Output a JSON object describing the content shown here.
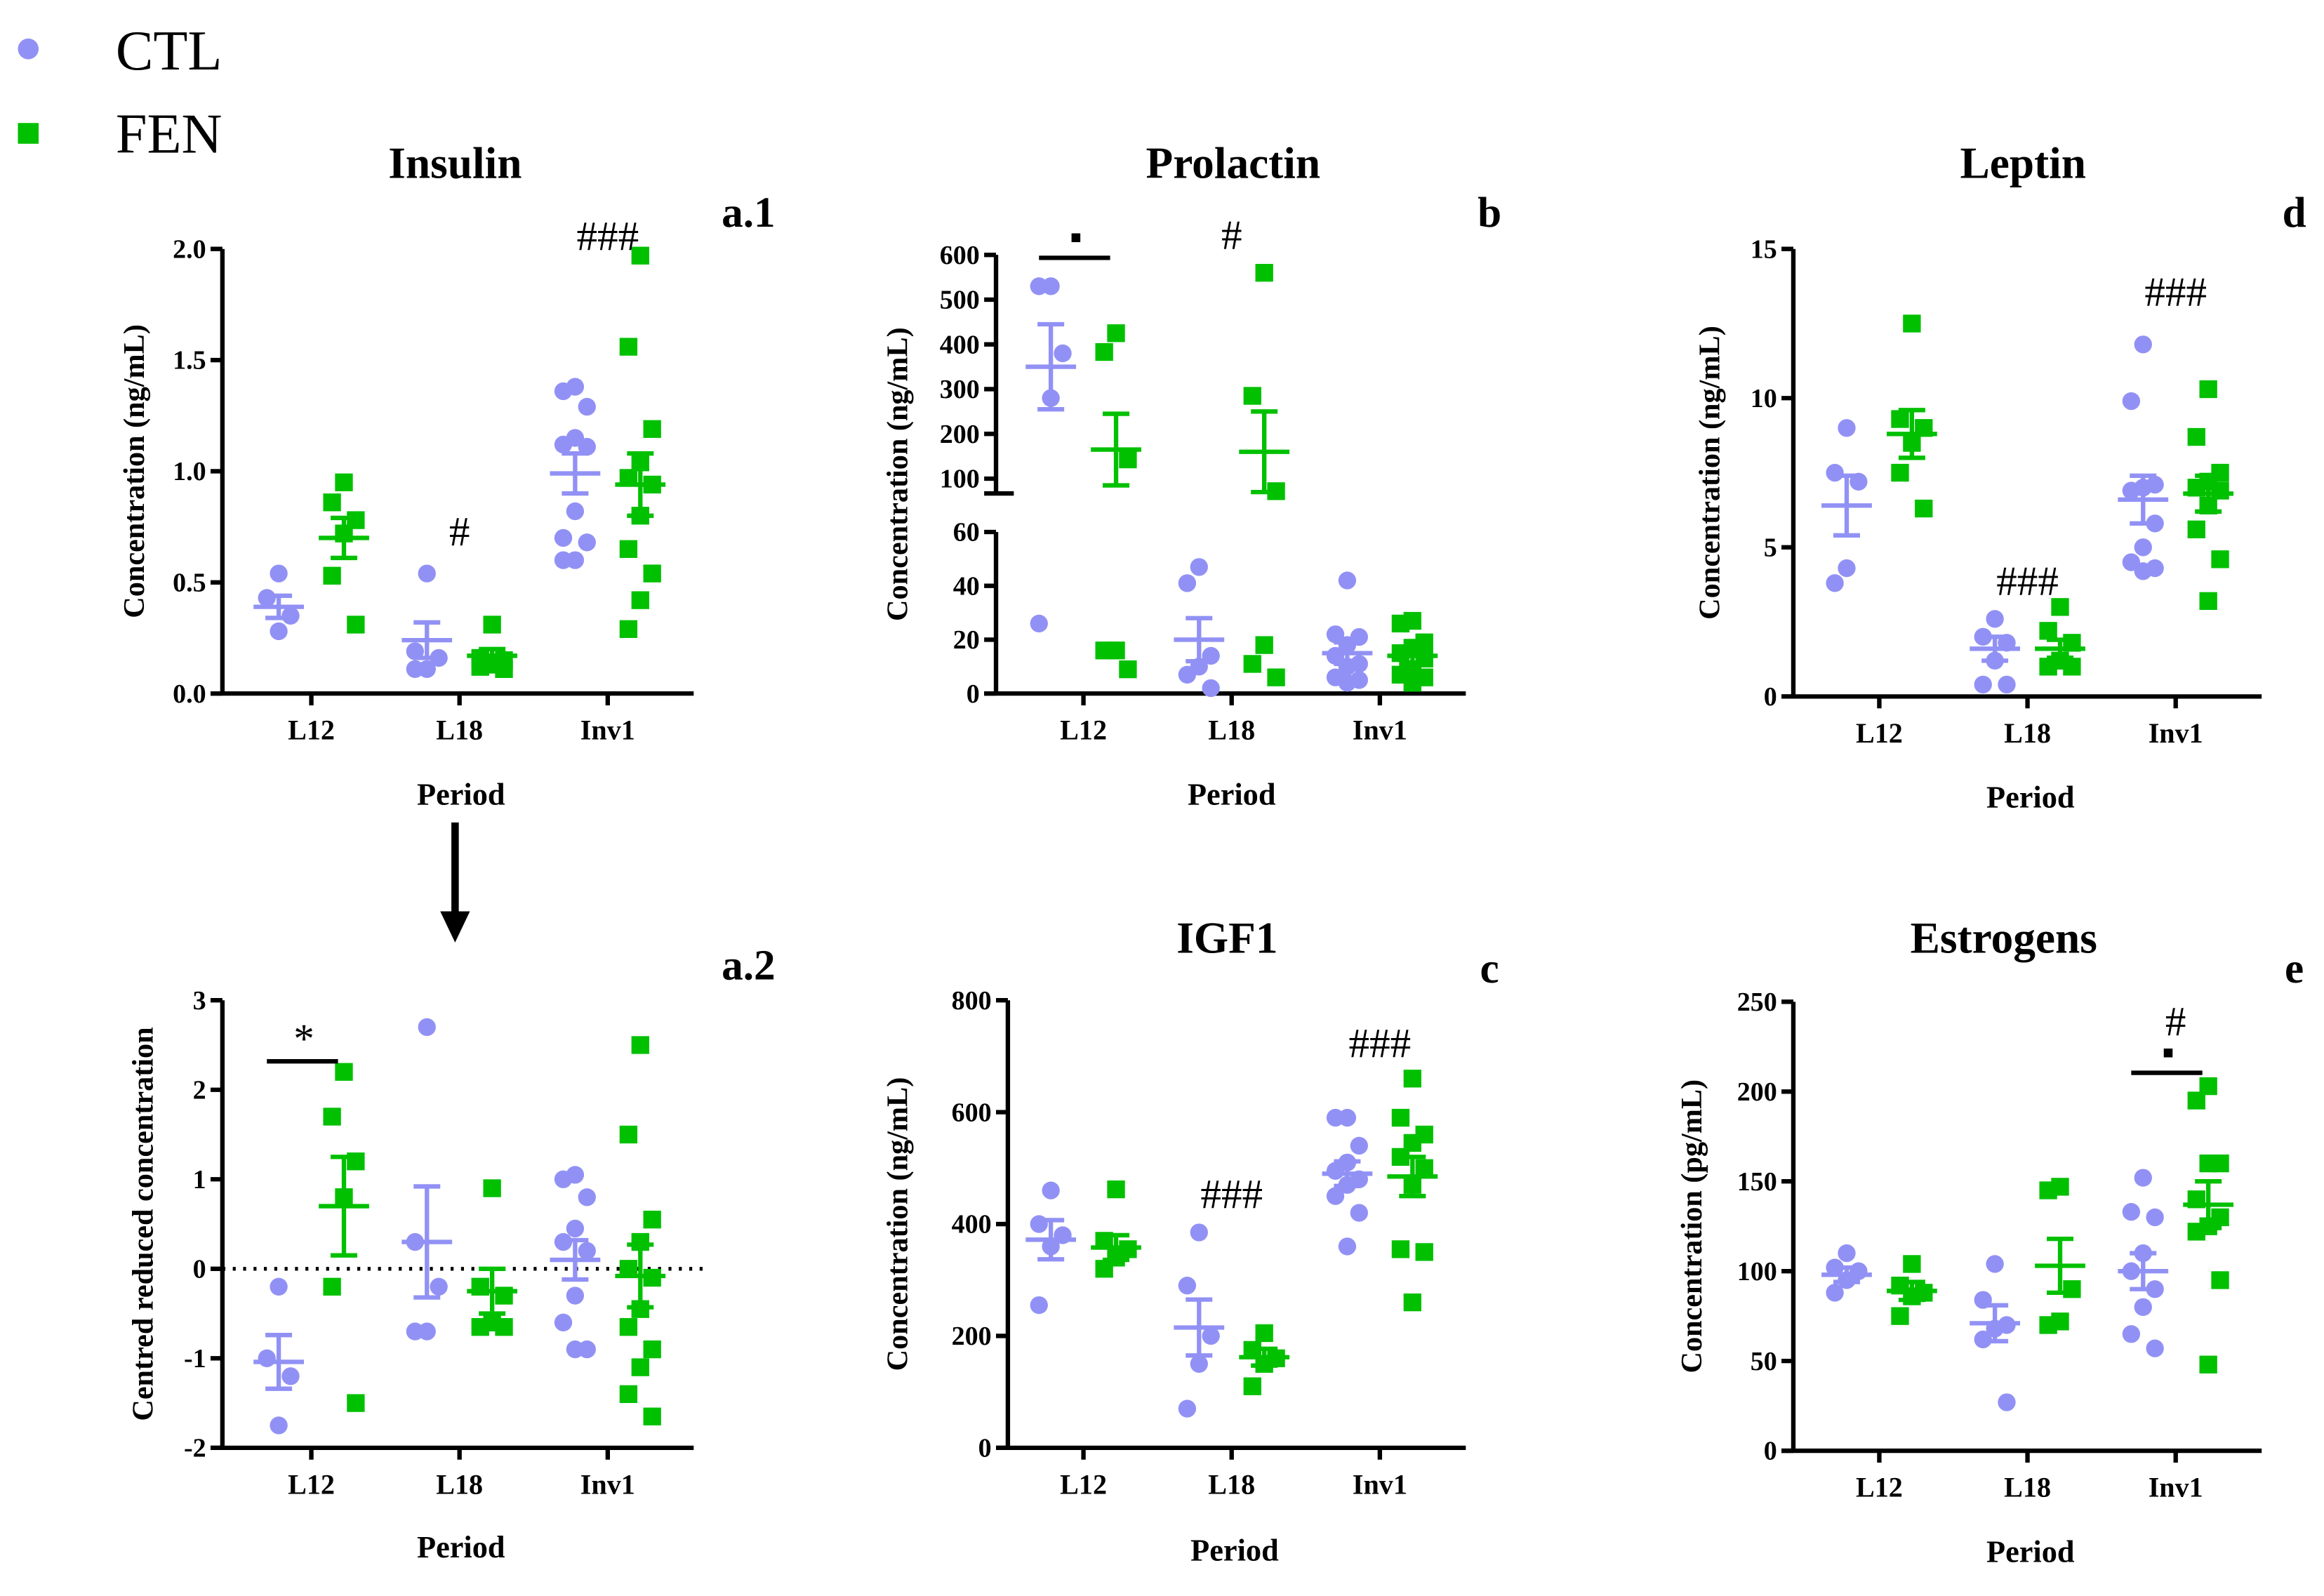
{
  "legend": [
    {
      "label": "CTL",
      "color": "#9191f5",
      "marker": "circle"
    },
    {
      "label": "FEN",
      "color": "#00c000",
      "marker": "square"
    }
  ],
  "arrow_icon": "arrow-down-icon",
  "chart_data": [
    {
      "id": "a1",
      "type": "scatter",
      "title": "Insulin",
      "panel_label": "a.1",
      "xlabel": "Period",
      "ylabel": "Concentration (ng/mL)",
      "categories": [
        "L12",
        "L18",
        "Inv1"
      ],
      "ylim": [
        0,
        2.0
      ],
      "yticks": [
        0,
        0.5,
        1.0,
        1.5,
        2.0
      ],
      "ytick_labels": [
        "0.0",
        "0.5",
        "1.0",
        "1.5",
        "2.0"
      ],
      "series": [
        {
          "name": "CTL",
          "points": [
            [
              0.54,
              0.43,
              0.35,
              0.28
            ],
            [
              0.54,
              0.19,
              0.16,
              0.11,
              0.11
            ],
            [
              1.38,
              1.36,
              1.29,
              1.15,
              1.12,
              1.11,
              0.82,
              0.7,
              0.68,
              0.6,
              0.6
            ]
          ],
          "mean": [
            0.39,
            0.24,
            0.99
          ],
          "sem": [
            0.05,
            0.08,
            0.09
          ]
        },
        {
          "name": "FEN",
          "points": [
            [
              0.95,
              0.86,
              0.78,
              0.72,
              0.53,
              0.31
            ],
            [
              0.31,
              0.16,
              0.15,
              0.13,
              0.12,
              0.11
            ],
            [
              1.97,
              1.56,
              1.19,
              1.04,
              0.97,
              0.94,
              0.8,
              0.65,
              0.54,
              0.42,
              0.29
            ]
          ],
          "mean": [
            0.7,
            0.17,
            0.94
          ],
          "sem": [
            0.09,
            0.03,
            0.14
          ]
        }
      ],
      "annotations": [
        {
          "category": 1,
          "text": "#",
          "y": 0.72
        },
        {
          "category": 2,
          "text": "###",
          "y": 2.05
        }
      ]
    },
    {
      "id": "a2",
      "type": "scatter",
      "title": "",
      "panel_label": "a.2",
      "xlabel": "Period",
      "ylabel": "Centred reduced concentration",
      "categories": [
        "L12",
        "L18",
        "Inv1"
      ],
      "ylim": [
        -2,
        3
      ],
      "yticks": [
        -2,
        -1,
        0,
        1,
        2,
        3
      ],
      "ytick_labels": [
        "-2",
        "-1",
        "0",
        "1",
        "2",
        "3"
      ],
      "reference_line": 0,
      "series": [
        {
          "name": "CTL",
          "points": [
            [
              -0.2,
              -1.0,
              -1.2,
              -1.75
            ],
            [
              2.7,
              0.3,
              -0.2,
              -0.7,
              -0.7
            ],
            [
              1.05,
              1.0,
              0.8,
              0.45,
              0.3,
              0.2,
              -0.3,
              -0.6,
              -0.9,
              -0.9
            ]
          ],
          "mean": [
            -1.04,
            0.3,
            0.1
          ],
          "sem": [
            0.3,
            0.62,
            0.22
          ]
        },
        {
          "name": "FEN",
          "points": [
            [
              2.2,
              1.7,
              1.2,
              0.8,
              -0.2,
              -1.5
            ],
            [
              0.9,
              -0.2,
              -0.3,
              -0.6,
              -0.65,
              -0.65
            ],
            [
              2.5,
              1.5,
              0.55,
              0.3,
              0.0,
              -0.1,
              -0.45,
              -0.65,
              -0.9,
              -1.1,
              -1.4,
              -1.65
            ]
          ],
          "mean": [
            0.7,
            -0.25,
            -0.08
          ],
          "sem": [
            0.55,
            0.25,
            0.35
          ]
        }
      ],
      "annotations": [
        {
          "category": 0,
          "text": "*",
          "y": 2.55,
          "bar": true
        }
      ]
    },
    {
      "id": "b",
      "type": "scatter",
      "title": "Prolactin",
      "panel_label": "b",
      "xlabel": "Period",
      "ylabel": "Concentration (ng/mL)",
      "categories": [
        "L12",
        "L18",
        "Inv1"
      ],
      "ylim": [
        0,
        600
      ],
      "axis_break": [
        60,
        70
      ],
      "yticks": [
        0,
        20,
        40,
        60,
        100,
        200,
        300,
        400,
        500,
        600
      ],
      "ytick_labels": [
        "0",
        "20",
        "40",
        "60",
        "100",
        "200",
        "300",
        "400",
        "500",
        "600"
      ],
      "series": [
        {
          "name": "CTL",
          "points": [
            [
              530,
              530,
              380,
              280,
              26
            ],
            [
              47,
              41,
              14,
              10,
              7,
              2
            ],
            [
              42,
              22,
              21,
              18,
              14,
              11,
              10,
              6,
              5,
              4
            ]
          ],
          "mean": [
            350,
            20,
            15
          ],
          "sem": [
            95,
            8,
            4
          ]
        },
        {
          "name": "FEN",
          "points": [
            [
              425,
              383,
              143,
              16,
              16,
              9
            ],
            [
              560,
              285,
              72,
              18,
              11,
              6
            ],
            [
              27,
              26,
              19,
              17,
              15,
              13,
              9,
              7,
              6,
              4
            ]
          ],
          "mean": [
            165,
            160,
            14
          ],
          "sem": [
            80,
            90,
            3
          ]
        }
      ],
      "annotations": [
        {
          "category": 0,
          "text": "▪",
          "y": 620,
          "bar": true
        },
        {
          "category": 1,
          "text": "#",
          "y": 620
        }
      ]
    },
    {
      "id": "c",
      "type": "scatter",
      "title": "IGF1",
      "panel_label": "c",
      "xlabel": "Period",
      "ylabel": "Concentration (ng/mL)",
      "categories": [
        "L12",
        "L18",
        "Inv1"
      ],
      "ylim": [
        0,
        800
      ],
      "yticks": [
        0,
        200,
        400,
        600,
        800
      ],
      "ytick_labels": [
        "0",
        "200",
        "400",
        "600",
        "800"
      ],
      "series": [
        {
          "name": "CTL",
          "points": [
            [
              460,
              400,
              380,
              360,
              255
            ],
            [
              385,
              290,
              200,
              150,
              70
            ],
            [
              590,
              590,
              540,
              510,
              495,
              480,
              470,
              450,
              420,
              360
            ]
          ],
          "mean": [
            372,
            215,
            490
          ],
          "sem": [
            35,
            50,
            22
          ]
        },
        {
          "name": "FEN",
          "points": [
            [
              462,
              370,
              355,
              340,
              320
            ],
            [
              205,
              175,
              160,
              150,
              110
            ],
            [
              660,
              590,
              560,
              545,
              520,
              500,
              470,
              355,
              350,
              260
            ]
          ],
          "mean": [
            358,
            162,
            485
          ],
          "sem": [
            22,
            15,
            35
          ]
        }
      ],
      "annotations": [
        {
          "category": 1,
          "text": "###",
          "y": 450
        },
        {
          "category": 2,
          "text": "###",
          "y": 720
        }
      ]
    },
    {
      "id": "d",
      "type": "scatter",
      "title": "Leptin",
      "panel_label": "d",
      "xlabel": "Period",
      "ylabel": "Concentration (ng/mL)",
      "categories": [
        "L12",
        "L18",
        "Inv1"
      ],
      "ylim": [
        0,
        15
      ],
      "yticks": [
        0,
        5,
        10,
        15
      ],
      "ytick_labels": [
        "0",
        "5",
        "10",
        "15"
      ],
      "series": [
        {
          "name": "CTL",
          "points": [
            [
              9.0,
              7.5,
              7.2,
              4.3,
              3.8
            ],
            [
              2.6,
              2.0,
              1.8,
              1.2,
              0.4,
              0.4
            ],
            [
              11.8,
              9.9,
              7.1,
              7.0,
              6.9,
              5.8,
              5.0,
              4.5,
              4.3,
              4.2
            ]
          ],
          "mean": [
            6.4,
            1.6,
            6.6
          ],
          "sem": [
            1.0,
            0.4,
            0.8
          ]
        },
        {
          "name": "FEN",
          "points": [
            [
              12.5,
              9.3,
              9.0,
              8.5,
              7.5,
              6.3
            ],
            [
              3.0,
              2.2,
              1.8,
              1.2,
              1.0,
              1.0
            ],
            [
              10.3,
              8.7,
              7.5,
              7.2,
              7.0,
              6.9,
              6.4,
              5.6,
              4.6,
              3.2
            ]
          ],
          "mean": [
            8.8,
            1.6,
            6.8
          ],
          "sem": [
            0.8,
            0.3,
            0.6
          ]
        }
      ],
      "annotations": [
        {
          "category": 1,
          "text": "###",
          "y": 3.8
        },
        {
          "category": 2,
          "text": "###",
          "y": 13.5
        }
      ]
    },
    {
      "id": "e",
      "type": "scatter",
      "title": "Estrogens",
      "panel_label": "e",
      "xlabel": "Period",
      "ylabel": "Concentration (pg/mL)",
      "categories": [
        "L12",
        "L18",
        "Inv1"
      ],
      "ylim": [
        0,
        250
      ],
      "yticks": [
        0,
        50,
        100,
        150,
        200,
        250
      ],
      "ytick_labels": [
        "0",
        "50",
        "100",
        "150",
        "200",
        "250"
      ],
      "series": [
        {
          "name": "CTL",
          "points": [
            [
              110,
              102,
              100,
              95,
              88
            ],
            [
              104,
              84,
              70,
              68,
              62,
              27
            ],
            [
              152,
              133,
              130,
              110,
              100,
              90,
              80,
              65,
              57
            ]
          ],
          "mean": [
            98,
            71,
            100
          ],
          "sem": [
            4,
            10,
            10
          ]
        },
        {
          "name": "FEN",
          "points": [
            [
              104,
              92,
              88,
              86,
              75
            ],
            [
              147,
              145,
              90,
              72,
              70
            ],
            [
              203,
              195,
              160,
              160,
              140,
              130,
              125,
              122,
              95,
              48
            ]
          ],
          "mean": [
            89,
            103,
            137
          ],
          "sem": [
            5,
            15,
            13
          ]
        }
      ],
      "annotations": [
        {
          "category": 2,
          "text": "#",
          "y": 238
        },
        {
          "category": 2,
          "text": "▪",
          "y": 222,
          "bar": true
        }
      ]
    }
  ]
}
